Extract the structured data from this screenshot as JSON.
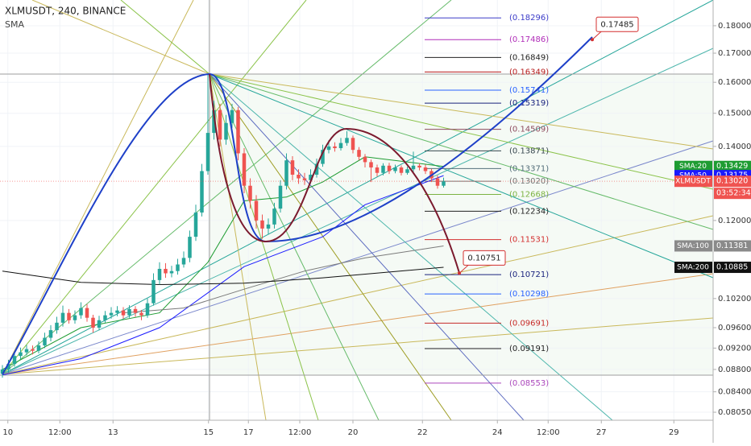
{
  "chart_data": {
    "type": "candlestick",
    "title": "XLMUSDT, 240, BINANCE",
    "subtitle": "SMA",
    "log_scale": true,
    "grid": true,
    "xlim": [
      -0.4,
      117.6
    ],
    "xticks": [
      {
        "value": 0.9,
        "label": "10"
      },
      {
        "value": 9.5,
        "label": "12:00"
      },
      {
        "value": 18.3,
        "label": "13"
      },
      {
        "value": 34.1,
        "label": "15"
      },
      {
        "value": 40.7,
        "label": "17"
      },
      {
        "value": 49.2,
        "label": "12:00"
      },
      {
        "value": 58,
        "label": "20"
      },
      {
        "value": 69.5,
        "label": "22"
      },
      {
        "value": 81.9,
        "label": "24"
      },
      {
        "value": 90.3,
        "label": "12:00"
      },
      {
        "value": 99.1,
        "label": "27"
      },
      {
        "value": 111.1,
        "label": "29"
      }
    ],
    "ylim": [
      0.07917,
      0.1899
    ],
    "yticks": [
      {
        "value": 0.18,
        "label": "0.18000"
      },
      {
        "value": 0.17,
        "label": "0.17000"
      },
      {
        "value": 0.16,
        "label": "0.16000"
      },
      {
        "value": 0.15,
        "label": "0.15000"
      },
      {
        "value": 0.14,
        "label": "0.14000"
      },
      {
        "value": 0.12,
        "label": "0.12000"
      },
      {
        "value": 0.102,
        "label": "0.10200"
      },
      {
        "value": 0.096,
        "label": "0.09600"
      },
      {
        "value": 0.092,
        "label": "0.09200"
      },
      {
        "value": 0.088,
        "label": "0.08800"
      },
      {
        "value": 0.084,
        "label": "0.08400"
      },
      {
        "value": 0.0805,
        "label": "0.08050"
      }
    ],
    "up_color": "#26a69a",
    "down_color": "#ef5350",
    "x": [
      0,
      1,
      2,
      3,
      4,
      5,
      6,
      7,
      8,
      9,
      10,
      11,
      12,
      13,
      14,
      15,
      16,
      17,
      18,
      19,
      20,
      21,
      22,
      23,
      24,
      25,
      26,
      27,
      28,
      29,
      30,
      31,
      32,
      33,
      34,
      35,
      36,
      37,
      38,
      39,
      40,
      41,
      42,
      43,
      44,
      45,
      46,
      47,
      48,
      49,
      50,
      51,
      52,
      53,
      54,
      55,
      56,
      57,
      58,
      59,
      60,
      61,
      62,
      63,
      64,
      65,
      66,
      67,
      68,
      69,
      70,
      71,
      72,
      73
    ],
    "open": [
      0.0872,
      0.088,
      0.089,
      0.0905,
      0.0912,
      0.0918,
      0.0915,
      0.0925,
      0.094,
      0.0955,
      0.097,
      0.099,
      0.0975,
      0.0985,
      0.1,
      0.098,
      0.096,
      0.0975,
      0.0985,
      0.099,
      0.0995,
      0.0985,
      0.0998,
      0.099,
      0.0985,
      0.101,
      0.106,
      0.1085,
      0.1075,
      0.108,
      0.1095,
      0.111,
      0.116,
      0.122,
      0.133,
      0.144,
      0.151,
      0.142,
      0.147,
      0.151,
      0.138,
      0.129,
      0.125,
      0.12,
      0.118,
      0.119,
      0.123,
      0.129,
      0.136,
      0.132,
      0.131,
      0.1305,
      0.132,
      0.135,
      0.139,
      0.14,
      0.1395,
      0.141,
      0.1425,
      0.139,
      0.137,
      0.1355,
      0.134,
      0.1325,
      0.1345,
      0.133,
      0.134,
      0.1325,
      0.1335,
      0.1345,
      0.134,
      0.133,
      0.131,
      0.129
    ],
    "high": [
      0.0888,
      0.0898,
      0.0912,
      0.0921,
      0.0926,
      0.0925,
      0.0933,
      0.095,
      0.0965,
      0.0982,
      0.1005,
      0.0998,
      0.0995,
      0.1012,
      0.1008,
      0.0986,
      0.0984,
      0.0994,
      0.1002,
      0.1004,
      0.1002,
      0.1006,
      0.1004,
      0.0996,
      0.102,
      0.1075,
      0.11,
      0.1098,
      0.1092,
      0.1108,
      0.1125,
      0.1175,
      0.124,
      0.135,
      0.1625,
      0.154,
      0.153,
      0.1495,
      0.153,
      0.152,
      0.1395,
      0.131,
      0.1265,
      0.1215,
      0.1205,
      0.1245,
      0.1305,
      0.138,
      0.1372,
      0.1335,
      0.1325,
      0.1335,
      0.1365,
      0.1405,
      0.1418,
      0.1412,
      0.1425,
      0.1445,
      0.1432,
      0.1398,
      0.1378,
      0.1362,
      0.1348,
      0.1352,
      0.1353,
      0.1348,
      0.1346,
      0.1342,
      0.1385,
      0.1352,
      0.1348,
      0.1336,
      0.1318,
      0.1312
    ],
    "low": [
      0.0865,
      0.0874,
      0.0885,
      0.0899,
      0.0906,
      0.0908,
      0.091,
      0.092,
      0.0933,
      0.0948,
      0.0962,
      0.0968,
      0.0968,
      0.0978,
      0.0972,
      0.095,
      0.0955,
      0.097,
      0.0978,
      0.0983,
      0.0978,
      0.098,
      0.0982,
      0.0975,
      0.098,
      0.1005,
      0.105,
      0.1065,
      0.1066,
      0.1072,
      0.1088,
      0.11,
      0.115,
      0.121,
      0.132,
      0.142,
      0.14,
      0.1405,
      0.1455,
      0.136,
      0.127,
      0.123,
      0.118,
      0.1155,
      0.1165,
      0.118,
      0.122,
      0.128,
      0.1305,
      0.1295,
      0.1292,
      0.1296,
      0.1312,
      0.1342,
      0.138,
      0.1385,
      0.1388,
      0.1402,
      0.138,
      0.136,
      0.134,
      0.13,
      0.1315,
      0.1318,
      0.1322,
      0.1324,
      0.1318,
      0.132,
      0.1328,
      0.1332,
      0.1322,
      0.13,
      0.1282,
      0.1285
    ],
    "close": [
      0.088,
      0.089,
      0.0905,
      0.0912,
      0.0918,
      0.0915,
      0.0925,
      0.094,
      0.0955,
      0.097,
      0.099,
      0.0975,
      0.0985,
      0.1,
      0.098,
      0.096,
      0.0975,
      0.0985,
      0.099,
      0.0995,
      0.0985,
      0.0998,
      0.099,
      0.0985,
      0.101,
      0.106,
      0.1085,
      0.1075,
      0.108,
      0.1095,
      0.111,
      0.116,
      0.122,
      0.133,
      0.144,
      0.151,
      0.142,
      0.147,
      0.151,
      0.138,
      0.129,
      0.125,
      0.12,
      0.118,
      0.119,
      0.123,
      0.129,
      0.136,
      0.132,
      0.131,
      0.1305,
      0.132,
      0.135,
      0.139,
      0.14,
      0.1395,
      0.141,
      0.1425,
      0.139,
      0.137,
      0.1355,
      0.134,
      0.1325,
      0.1345,
      0.133,
      0.134,
      0.1325,
      0.1335,
      0.1345,
      0.134,
      0.133,
      0.131,
      0.129,
      0.1302
    ],
    "symbol": "XLMUSDT",
    "last_price_label": "0.13020",
    "last_price_color": "#ef5350",
    "countdown": "03:52:34",
    "series": [
      {
        "name": "SMA:20",
        "color": "#1e9c32",
        "x": [
          0,
          13,
          26,
          34,
          40,
          47,
          53,
          60,
          73
        ],
        "values": [
          0.088,
          0.096,
          0.099,
          0.11,
          0.125,
          0.126,
          0.13,
          0.137,
          0.13429
        ]
      },
      {
        "name": "SMA:50",
        "color": "#1a1aff",
        "x": [
          0,
          13,
          26,
          40,
          53,
          60,
          73
        ],
        "values": [
          0.087,
          0.09,
          0.096,
          0.109,
          0.116,
          0.124,
          0.13175
        ]
      },
      {
        "name": "SMA:100",
        "color": "#7a7a7a",
        "x": [
          20,
          30,
          40,
          50,
          60,
          73
        ],
        "values": [
          0.099,
          0.1,
          0.104,
          0.108,
          0.111,
          0.11381
        ]
      },
      {
        "name": "SMA:200",
        "color": "#111111",
        "x": [
          0,
          13,
          26,
          40,
          53,
          73
        ],
        "values": [
          0.108,
          0.1055,
          0.105,
          0.1053,
          0.1065,
          0.10885
        ]
      }
    ],
    "fib_levels": [
      {
        "value": 0.18296,
        "label": "(0.18296)",
        "color": "#3b3bc8"
      },
      {
        "value": 0.17486,
        "label": "(0.17486)",
        "color": "#b02cb8"
      },
      {
        "value": 0.16849,
        "label": "(0.16849)",
        "color": "#222222"
      },
      {
        "value": 0.16349,
        "label": "(0.16349)",
        "color": "#b71c1c"
      },
      {
        "value": 0.15741,
        "label": "(0.15741)",
        "color": "#2962ff"
      },
      {
        "value": 0.15319,
        "label": "(0.15319)",
        "color": "#1a237e"
      },
      {
        "value": 0.14509,
        "label": "(0.14509)",
        "color": "#8d4a5e"
      },
      {
        "value": 0.13871,
        "label": "(0.13871)",
        "color": "#37474f"
      },
      {
        "value": 0.13371,
        "label": "(0.13371)",
        "color": "#546e7a"
      },
      {
        "value": 0.1302,
        "label": "(0.13020)",
        "color": "#757575"
      },
      {
        "value": 0.12668,
        "label": "(0.12668)",
        "color": "#7cb342"
      },
      {
        "value": 0.12234,
        "label": "(0.12234)",
        "color": "#222222"
      },
      {
        "value": 0.11531,
        "label": "(0.11531)",
        "color": "#d32f2f"
      },
      {
        "value": 0.10721,
        "label": "(0.10721)",
        "color": "#1a237e"
      },
      {
        "value": 0.10298,
        "label": "(0.10298)",
        "color": "#2962ff"
      },
      {
        "value": 0.09691,
        "label": "(0.09691)",
        "color": "#c62828"
      },
      {
        "value": 0.09191,
        "label": "(0.09191)",
        "color": "#222222"
      },
      {
        "value": 0.08553,
        "label": "(0.08553)",
        "color": "#ab47bc"
      }
    ],
    "callouts": [
      {
        "value": 0.17485,
        "color": "#d32f2f"
      },
      {
        "value": 0.10751,
        "color": "#d32f2f"
      }
    ]
  }
}
